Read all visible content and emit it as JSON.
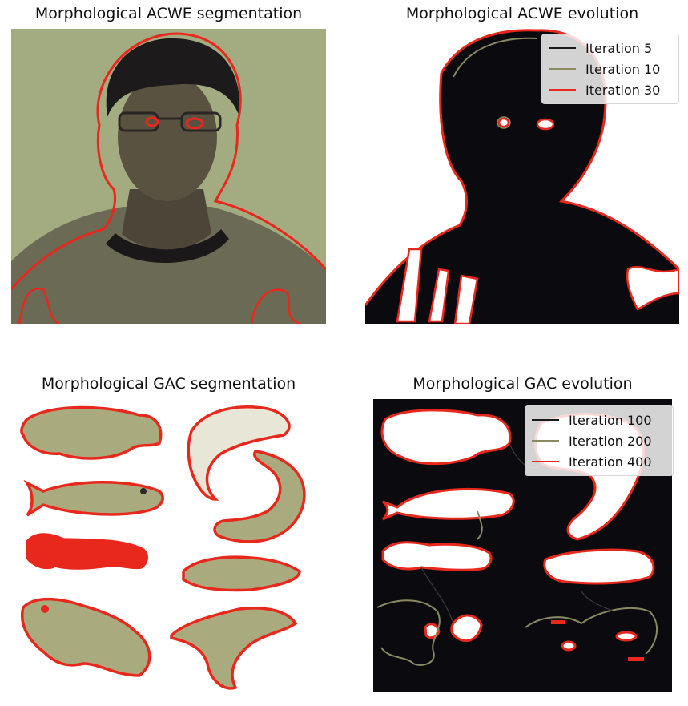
{
  "panels": [
    {
      "title": "Morphological ACWE segmentation"
    },
    {
      "title": "Morphological ACWE evolution",
      "legend": [
        {
          "label": "Iteration 5",
          "color": "#1a1a1a"
        },
        {
          "label": "Iteration 10",
          "color": "#8a8a62"
        },
        {
          "label": "Iteration 30",
          "color": "#e8281c"
        }
      ]
    },
    {
      "title": "Morphological GAC segmentation"
    },
    {
      "title": "Morphological GAC evolution",
      "legend": [
        {
          "label": "Iteration 100",
          "color": "#1a1a1a"
        },
        {
          "label": "Iteration 200",
          "color": "#8a8a62"
        },
        {
          "label": "Iteration 400",
          "color": "#e8281c"
        }
      ]
    }
  ],
  "colors": {
    "contour": "#e8281c",
    "mid_contour": "#8a8a62",
    "photo_bg": "#a3ac80",
    "evolution_bg": "#0b0b0f",
    "fish_fill": "#a9ab7e"
  }
}
